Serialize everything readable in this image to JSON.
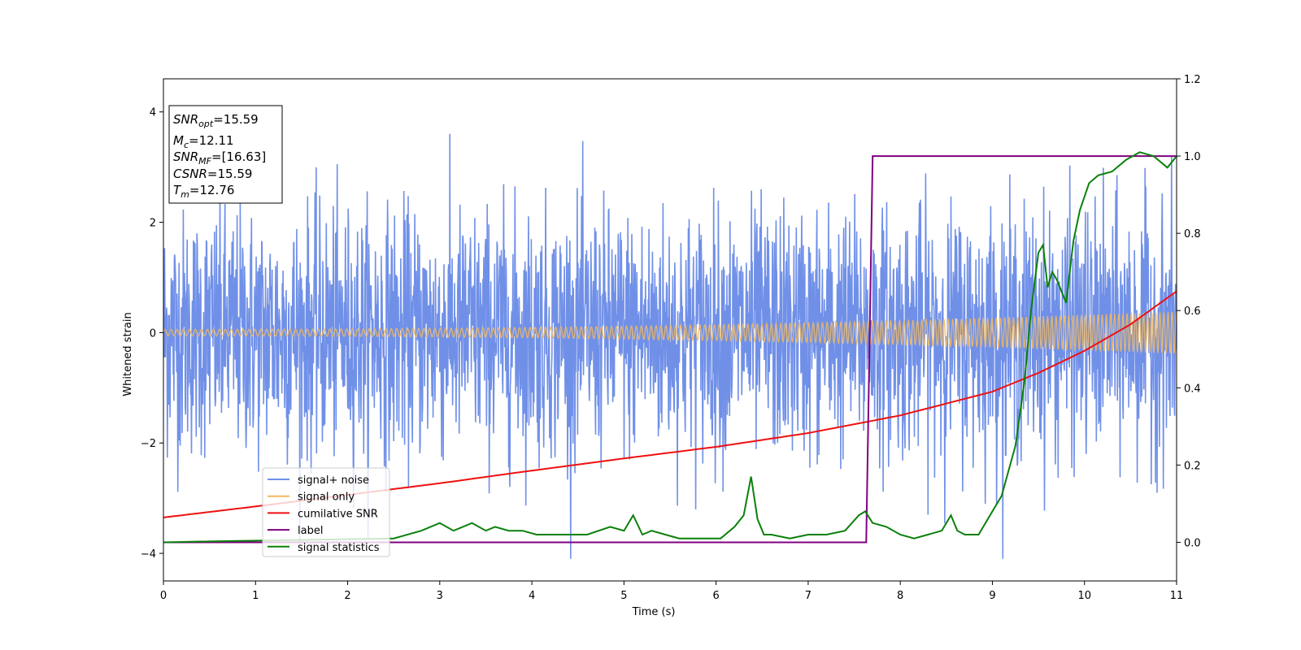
{
  "chart_data": {
    "type": "line",
    "xlabel": "Time (s)",
    "ylabel": "Whitened strain",
    "xlim": [
      0,
      11
    ],
    "ylim_left": [
      -4.5,
      4.6
    ],
    "ylim_right": [
      -0.1,
      1.2
    ],
    "x_ticks": [
      "0",
      "1",
      "2",
      "3",
      "4",
      "5",
      "6",
      "7",
      "8",
      "9",
      "10",
      "11"
    ],
    "y_ticks_left": [
      "−4",
      "−2",
      "0",
      "2",
      "4"
    ],
    "y_ticks_right": [
      "0.0",
      "0.2",
      "0.4",
      "0.6",
      "0.8",
      "1.0",
      "1.2"
    ],
    "legend": {
      "placement": "lower-left",
      "entries": [
        "signal+ noise",
        "signal only",
        "cumilative SNR",
        "label",
        "signal statistics"
      ]
    },
    "info_box": [
      {
        "base": "SNR",
        "sub": "opt",
        "value": "=15.59"
      },
      {
        "base": "M",
        "sub": "c",
        "value": "=12.11"
      },
      {
        "base": "SNR",
        "sub": "MF",
        "value": "=[16.63]"
      },
      {
        "base": "CSNR",
        "sub": "",
        "value": "=15.59"
      },
      {
        "base": "T",
        "sub": "m",
        "value": "=12.76"
      }
    ],
    "series": [
      {
        "name": "signal+ noise",
        "axis": "left",
        "color": "#7090e8",
        "kind": "noise",
        "amplitude": 1.1
      },
      {
        "name": "signal only",
        "axis": "left",
        "color": "#f0b860",
        "kind": "chirp",
        "amp_start": 0.06,
        "amp_end": 0.38
      },
      {
        "name": "cumilative SNR",
        "axis": "left",
        "x": [
          0,
          1,
          2,
          3,
          4,
          5,
          6,
          7,
          8,
          9,
          9.5,
          10,
          10.5,
          11
        ],
        "y": [
          -3.35,
          -3.15,
          -2.94,
          -2.73,
          -2.5,
          -2.28,
          -2.07,
          -1.82,
          -1.5,
          -1.07,
          -0.73,
          -0.33,
          0.15,
          0.75
        ],
        "color": "#ee1111"
      },
      {
        "name": "label",
        "axis": "right",
        "x": [
          0,
          7.63,
          7.7,
          11
        ],
        "y": [
          0,
          0,
          1,
          1
        ],
        "color": "#800080"
      },
      {
        "name": "signal statistics",
        "axis": "right",
        "x": [
          0,
          0.4,
          2.5,
          2.8,
          3.0,
          3.15,
          3.35,
          3.5,
          3.6,
          3.75,
          3.9,
          4.05,
          4.3,
          4.6,
          4.85,
          5.0,
          5.1,
          5.2,
          5.3,
          5.45,
          5.6,
          5.75,
          5.9,
          6.05,
          6.2,
          6.3,
          6.38,
          6.45,
          6.52,
          6.6,
          6.8,
          7.0,
          7.2,
          7.4,
          7.55,
          7.62,
          7.7,
          7.85,
          8.0,
          8.15,
          8.3,
          8.45,
          8.55,
          8.62,
          8.7,
          8.85,
          8.95,
          9.1,
          9.25,
          9.35,
          9.42,
          9.5,
          9.55,
          9.6,
          9.65,
          9.7,
          9.8,
          9.88,
          9.95,
          10.05,
          10.15,
          10.3,
          10.45,
          10.6,
          10.75,
          10.9,
          11
        ],
        "y": [
          0.0,
          0.002,
          0.01,
          0.03,
          0.05,
          0.03,
          0.05,
          0.03,
          0.04,
          0.03,
          0.03,
          0.02,
          0.02,
          0.02,
          0.04,
          0.03,
          0.07,
          0.02,
          0.03,
          0.02,
          0.01,
          0.01,
          0.01,
          0.01,
          0.04,
          0.07,
          0.17,
          0.06,
          0.02,
          0.02,
          0.01,
          0.02,
          0.02,
          0.03,
          0.07,
          0.08,
          0.05,
          0.04,
          0.02,
          0.01,
          0.02,
          0.03,
          0.07,
          0.03,
          0.02,
          0.02,
          0.06,
          0.12,
          0.25,
          0.42,
          0.6,
          0.75,
          0.77,
          0.66,
          0.7,
          0.68,
          0.62,
          0.78,
          0.86,
          0.93,
          0.95,
          0.96,
          0.99,
          1.01,
          1.0,
          0.97,
          1.0
        ],
        "color": "#0a800a"
      }
    ]
  }
}
